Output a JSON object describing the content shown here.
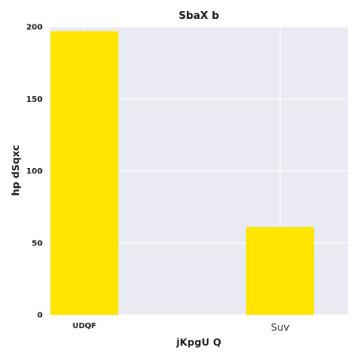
{
  "chart_data": {
    "type": "bar",
    "title": "SbaX b",
    "xlabel": "jKpgU  Q",
    "ylabel": "hp  dSqxc",
    "categories": [
      "UDQF",
      "Suv"
    ],
    "values": [
      197,
      61
    ],
    "ylim": [
      0,
      200
    ],
    "yticks": [
      0,
      50,
      100,
      150,
      200
    ],
    "bar_color": "#FFE500",
    "background_color": "#EAEAF2",
    "grid_color": "#FFFFFF",
    "grid": true
  }
}
